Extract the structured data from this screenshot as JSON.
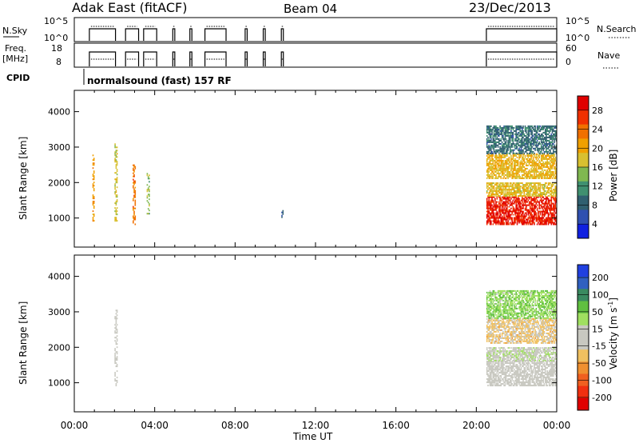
{
  "header": {
    "station": "Adak East (fitACF)",
    "beam": "Beam 04",
    "date": "23/Dec/2013"
  },
  "summary": {
    "nsky_label": "N.Sky",
    "nsearch_label": "N.Search",
    "freq_label_1": "Freq.",
    "freq_label_2": "[MHz]",
    "nave_label": "Nave",
    "cpid_label": "CPID",
    "cpid_text": "normalsound (fast) 157 RF",
    "noise_ticks_left": [
      "10^5",
      "10^0"
    ],
    "noise_ticks_right": [
      "10^5",
      "10^0"
    ],
    "freq_ticks": [
      "18",
      "8"
    ],
    "nave_ticks": [
      "60",
      "0"
    ]
  },
  "colorbar_power": {
    "label": "Power [dB]",
    "ticks": [
      "28",
      "24",
      "20",
      "16",
      "12",
      "8",
      "4"
    ],
    "colors": [
      "#e00000",
      "#f03000",
      "#f07000",
      "#f0a000",
      "#d8c030",
      "#80b850",
      "#409070",
      "#306070",
      "#3050b0",
      "#1020e0"
    ]
  },
  "colorbar_velocity": {
    "label": "Velocity [m s",
    "label_sup": "-1",
    "label_end": "]",
    "ticks": [
      "200",
      "100",
      "50",
      "15",
      "-15",
      "-50",
      "-100",
      "-200"
    ],
    "colors": [
      "#2040e0",
      "#3060c0",
      "#3a8a60",
      "#60c040",
      "#a0e060",
      "#c8c8c0",
      "#c8c8c0",
      "#f0c060",
      "#f09030",
      "#f06020",
      "#f03010",
      "#e00000"
    ]
  },
  "chart_data": {
    "type": "heatmap",
    "title": "Adak East (fitACF)  Beam 04  23/Dec/2013",
    "xlabel": "Time UT",
    "ylabel": "Slant Range [km]",
    "xticks": [
      "00:00",
      "04:00",
      "08:00",
      "12:00",
      "16:00",
      "20:00",
      "00:00"
    ],
    "xlim_hours": [
      0,
      24
    ],
    "ylim_km": [
      180,
      4600
    ],
    "yticks": [
      "1000",
      "2000",
      "3000",
      "4000"
    ],
    "soundings_hours": [
      [
        0.75,
        2.05
      ],
      [
        2.55,
        3.2
      ],
      [
        3.45,
        4.1
      ],
      [
        4.9,
        5.0
      ],
      [
        5.75,
        5.85
      ],
      [
        6.5,
        7.55
      ],
      [
        8.5,
        8.6
      ],
      [
        9.4,
        9.5
      ],
      [
        10.3,
        10.4
      ],
      [
        20.5,
        24.0
      ]
    ],
    "panels": [
      {
        "name": "Power",
        "units": "dB",
        "scale": [
          0,
          30
        ],
        "echo_regions": [
          {
            "t_start": 20.5,
            "t_end": 24.0,
            "range_km": [
              800,
              1600
            ],
            "value": 27
          },
          {
            "t_start": 20.5,
            "t_end": 24.0,
            "range_km": [
              1600,
              2000
            ],
            "value": 17
          },
          {
            "t_start": 20.5,
            "t_end": 24.0,
            "range_km": [
              2100,
              2800
            ],
            "value": 18
          },
          {
            "t_start": 20.5,
            "t_end": 24.0,
            "range_km": [
              2800,
              3600
            ],
            "value": 8
          },
          {
            "t_start": 0.9,
            "t_end": 1.0,
            "range_km": [
              900,
              2800
            ],
            "value": 20
          },
          {
            "t_start": 2.0,
            "t_end": 2.1,
            "range_km": [
              900,
              3100
            ],
            "value": 16
          },
          {
            "t_start": 2.9,
            "t_end": 3.0,
            "range_km": [
              800,
              2500
            ],
            "value": 22
          },
          {
            "t_start": 3.6,
            "t_end": 3.7,
            "range_km": [
              1100,
              2300
            ],
            "value": 14
          },
          {
            "t_start": 10.3,
            "t_end": 10.4,
            "range_km": [
              1000,
              1200
            ],
            "value": 6
          }
        ]
      },
      {
        "name": "Velocity",
        "units": "m s-1",
        "scale": [
          -200,
          200
        ],
        "echo_regions": [
          {
            "t_start": 20.5,
            "t_end": 24.0,
            "range_km": [
              900,
              1600
            ],
            "value": 0
          },
          {
            "t_start": 20.5,
            "t_end": 24.0,
            "range_km": [
              1600,
              2000
            ],
            "value": 20
          },
          {
            "t_start": 20.5,
            "t_end": 24.0,
            "range_km": [
              2100,
              2800
            ],
            "value": -40
          },
          {
            "t_start": 20.5,
            "t_end": 24.0,
            "range_km": [
              2800,
              3600
            ],
            "value": 60
          },
          {
            "t_start": 2.0,
            "t_end": 2.1,
            "range_km": [
              900,
              3100
            ],
            "value": 0
          }
        ]
      }
    ]
  }
}
